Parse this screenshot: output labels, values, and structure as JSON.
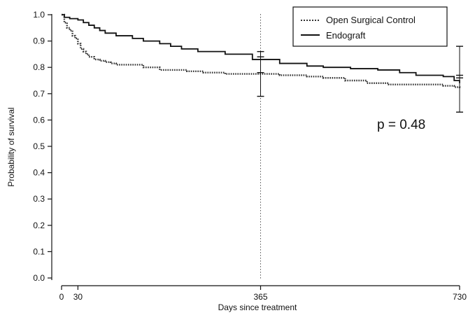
{
  "chart_data": {
    "type": "line",
    "title": "",
    "xlabel": "Days since treatment",
    "ylabel": "Probability of survival",
    "xlim": [
      0,
      730
    ],
    "ylim": [
      0.0,
      1.0
    ],
    "x_ticks": [
      {
        "value": 0,
        "label": "0"
      },
      {
        "value": 30,
        "label": "30"
      },
      {
        "value": 365,
        "label": "365"
      },
      {
        "value": 730,
        "label": "730"
      }
    ],
    "y_ticks": [
      {
        "value": 0.0,
        "label": "0.0"
      },
      {
        "value": 0.1,
        "label": "0.1"
      },
      {
        "value": 0.2,
        "label": "0.2"
      },
      {
        "value": 0.3,
        "label": "0.3"
      },
      {
        "value": 0.4,
        "label": "0.4"
      },
      {
        "value": 0.5,
        "label": "0.5"
      },
      {
        "value": 0.6,
        "label": "0.6"
      },
      {
        "value": 0.7,
        "label": "0.7"
      },
      {
        "value": 0.8,
        "label": "0.8"
      },
      {
        "value": 0.9,
        "label": "0.9"
      },
      {
        "value": 1.0,
        "label": "1.0"
      }
    ],
    "grid": false,
    "legend_position": "top-right",
    "reference_line_x": 365,
    "annotation": "p = 0.48",
    "series": [
      {
        "name": "Open Surgical Control",
        "style": "dotted",
        "color": "#333333",
        "x": [
          0,
          5,
          10,
          15,
          20,
          25,
          30,
          35,
          40,
          45,
          50,
          60,
          70,
          80,
          90,
          100,
          120,
          150,
          180,
          230,
          260,
          300,
          400,
          450,
          480,
          520,
          560,
          600,
          700,
          720,
          730
        ],
        "y": [
          1.0,
          0.97,
          0.95,
          0.94,
          0.92,
          0.91,
          0.89,
          0.87,
          0.86,
          0.85,
          0.84,
          0.83,
          0.825,
          0.82,
          0.815,
          0.81,
          0.81,
          0.8,
          0.79,
          0.785,
          0.78,
          0.775,
          0.77,
          0.765,
          0.76,
          0.75,
          0.74,
          0.735,
          0.73,
          0.725,
          0.72
        ],
        "error_bars": [
          {
            "x": 365,
            "low": 0.69,
            "high": 0.86
          },
          {
            "x": 730,
            "low": 0.63,
            "high": 0.77
          }
        ]
      },
      {
        "name": "Endograft",
        "style": "solid",
        "color": "#111111",
        "x": [
          0,
          5,
          15,
          30,
          40,
          50,
          60,
          70,
          80,
          100,
          130,
          150,
          180,
          200,
          220,
          250,
          300,
          350,
          400,
          450,
          480,
          530,
          580,
          620,
          650,
          700,
          720,
          730
        ],
        "y": [
          1.0,
          0.99,
          0.985,
          0.98,
          0.97,
          0.96,
          0.95,
          0.94,
          0.93,
          0.92,
          0.91,
          0.9,
          0.89,
          0.88,
          0.87,
          0.86,
          0.85,
          0.83,
          0.815,
          0.805,
          0.8,
          0.795,
          0.79,
          0.78,
          0.77,
          0.765,
          0.75,
          0.74
        ],
        "error_bars": [
          {
            "x": 365,
            "low": 0.78,
            "high": 0.84
          },
          {
            "x": 730,
            "low": 0.76,
            "high": 0.88
          }
        ]
      }
    ]
  }
}
